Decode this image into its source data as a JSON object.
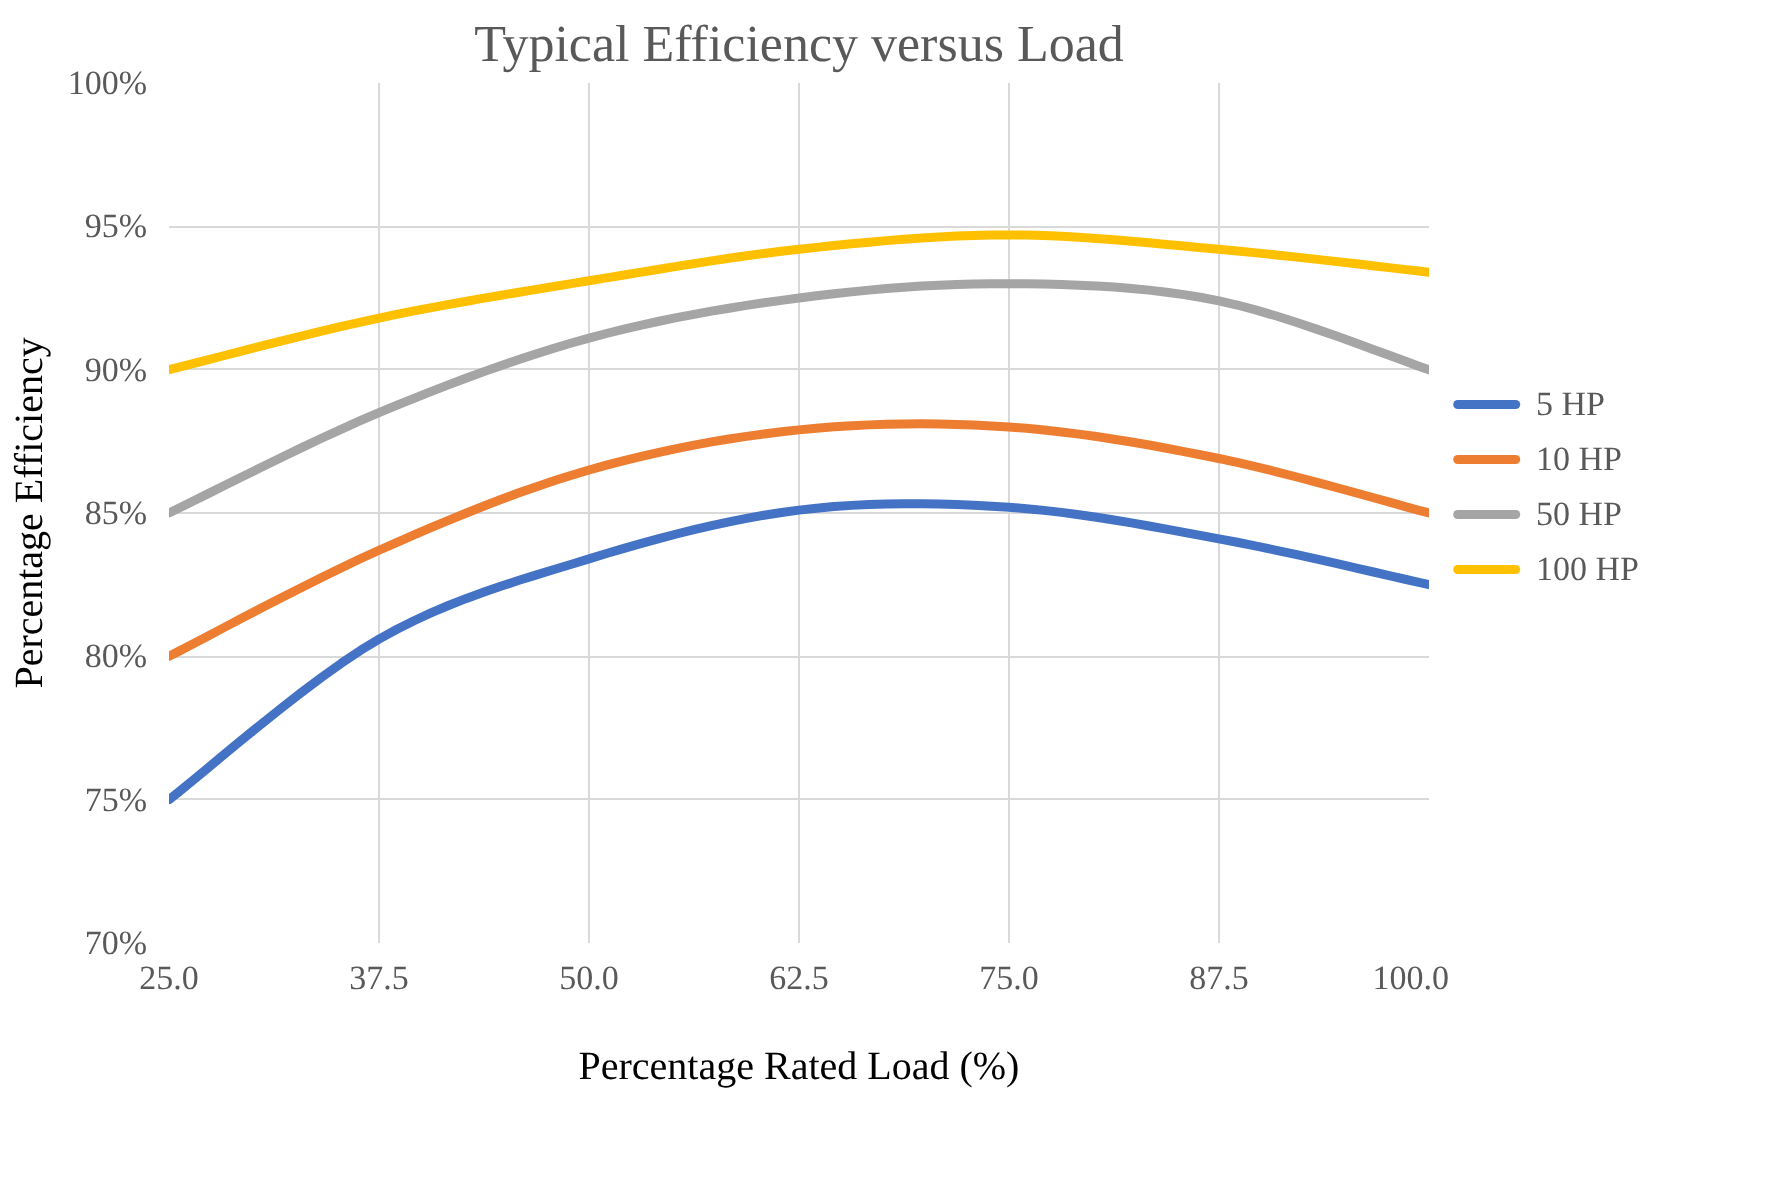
{
  "chart_data": {
    "type": "line",
    "title": "Typical Efficiency versus Load",
    "xlabel": "Percentage Rated Load (%)",
    "ylabel": "Percentage Efficiency",
    "x": [
      25,
      37.5,
      50,
      62.5,
      75,
      87.5,
      100
    ],
    "series": [
      {
        "name": "5 HP",
        "color": "#4472c4",
        "values": [
          75,
          80.6,
          83.4,
          85.1,
          85.2,
          84.1,
          82.5
        ]
      },
      {
        "name": "10 HP",
        "color": "#ed7d31",
        "values": [
          80,
          83.7,
          86.5,
          87.9,
          88.0,
          86.9,
          85
        ]
      },
      {
        "name": "50 HP",
        "color": "#a5a5a5",
        "values": [
          85,
          88.5,
          91.1,
          92.5,
          93.0,
          92.4,
          90
        ]
      },
      {
        "name": "100 HP",
        "color": "#ffc000",
        "values": [
          90,
          91.8,
          93.1,
          94.2,
          94.7,
          94.2,
          93.4
        ]
      }
    ],
    "xlim": [
      25,
      100
    ],
    "ylim": [
      70,
      100
    ],
    "xticks": [
      {
        "value": 25,
        "label": "25.0"
      },
      {
        "value": 37.5,
        "label": "37.5"
      },
      {
        "value": 50,
        "label": "50.0"
      },
      {
        "value": 62.5,
        "label": "62.5"
      },
      {
        "value": 75,
        "label": "75.0"
      },
      {
        "value": 87.5,
        "label": "87.5"
      },
      {
        "value": 100,
        "label": "100.0"
      }
    ],
    "yticks": [
      {
        "value": 70,
        "label": "70%"
      },
      {
        "value": 75,
        "label": "75%"
      },
      {
        "value": 80,
        "label": "80%"
      },
      {
        "value": 85,
        "label": "85%"
      },
      {
        "value": 90,
        "label": "90%"
      },
      {
        "value": 95,
        "label": "95%"
      },
      {
        "value": 100,
        "label": "100%"
      }
    ],
    "grid": true,
    "legend": "right",
    "marker": "none",
    "line_style": "solid"
  }
}
